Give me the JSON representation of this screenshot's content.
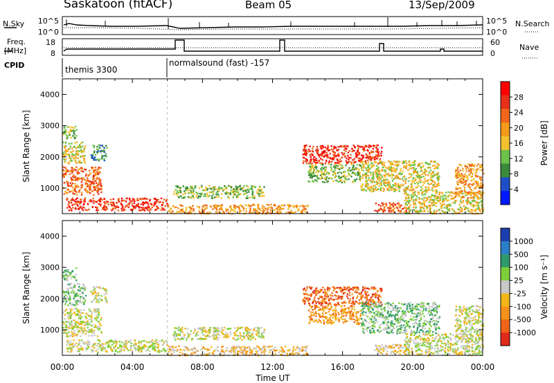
{
  "header": {
    "station": "Saskatoon (fitACF)",
    "beam": "Beam 05",
    "date": "13/Sep/2009"
  },
  "top_panel": {
    "left_label": "N.Sky",
    "right_label": "N.Search",
    "y_ticks_left": [
      "10^5",
      "10^0"
    ],
    "y_ticks_right": [
      "10^5",
      "10^0"
    ]
  },
  "freq_panel": {
    "left_label_1": "Freq.",
    "left_label_2": "[MHz]",
    "right_label": "Nave",
    "y_ticks_left": [
      "18",
      "8"
    ],
    "y_ticks_right": [
      "60",
      "0"
    ]
  },
  "cpid": {
    "label": "CPID",
    "segments": [
      {
        "name": "themis 3300",
        "start_hour": 0
      },
      {
        "name": "normalsound (fast) -157",
        "start_hour": 6
      }
    ]
  },
  "colors": {
    "power_scale": [
      "#0018ff",
      "#1f4fc8",
      "#3a8a3a",
      "#6cc24a",
      "#f2c12e",
      "#f59a1a",
      "#f0661a",
      "#e8301a",
      "#ff0000"
    ],
    "velocity_scale": [
      "#1c3fb0",
      "#2c7ec8",
      "#2f9a6a",
      "#7dcf3a",
      "#c8c8c8",
      "#f2b61a",
      "#f5921a",
      "#f0641a",
      "#e02a1a"
    ]
  },
  "chart_data": [
    {
      "type": "heatmap",
      "id": "power",
      "ylabel": "Slant Range [km]",
      "y_ticks": [
        1000,
        2000,
        3000,
        4000
      ],
      "ylim": [
        180,
        4500
      ],
      "xlim": [
        0,
        24
      ],
      "colorbar": {
        "label": "Power [dB]",
        "ticks": [
          "28",
          "24",
          "20",
          "16",
          "12",
          "8",
          "4"
        ]
      },
      "regions": [
        {
          "t0": 0.0,
          "t1": 2.2,
          "r0": 800,
          "r1": 1700,
          "level": 6
        },
        {
          "t0": 0.0,
          "t1": 1.3,
          "r0": 1800,
          "r1": 2500,
          "level": 4
        },
        {
          "t0": 0.0,
          "t1": 0.8,
          "r0": 2600,
          "r1": 3000,
          "level": 3
        },
        {
          "t0": 1.6,
          "t1": 2.5,
          "r0": 1900,
          "r1": 2400,
          "level": 2
        },
        {
          "t0": 0.2,
          "t1": 6.0,
          "r0": 300,
          "r1": 700,
          "level": 7
        },
        {
          "t0": 6.0,
          "t1": 14.0,
          "r0": 200,
          "r1": 500,
          "level": 5
        },
        {
          "t0": 6.3,
          "t1": 11.5,
          "r0": 700,
          "r1": 1100,
          "level": 3
        },
        {
          "t0": 13.7,
          "t1": 18.2,
          "r0": 1800,
          "r1": 2400,
          "level": 7
        },
        {
          "t0": 14.0,
          "t1": 17.0,
          "r0": 1200,
          "r1": 1800,
          "level": 3
        },
        {
          "t0": 17.0,
          "t1": 21.5,
          "r0": 900,
          "r1": 1900,
          "level": 4
        },
        {
          "t0": 17.8,
          "t1": 19.8,
          "r0": 250,
          "r1": 550,
          "level": 6
        },
        {
          "t0": 19.5,
          "t1": 24.0,
          "r0": 200,
          "r1": 900,
          "level": 4
        },
        {
          "t0": 22.4,
          "t1": 24.0,
          "r0": 700,
          "r1": 1800,
          "level": 5
        }
      ]
    },
    {
      "type": "heatmap",
      "id": "velocity",
      "ylabel": "Slant Range [km]",
      "y_ticks": [
        1000,
        2000,
        3000,
        4000
      ],
      "ylim": [
        180,
        4500
      ],
      "xlim": [
        0,
        24
      ],
      "x_ticks": [
        "00:00",
        "04:00",
        "08:00",
        "12:00",
        "16:00",
        "20:00",
        "00:00"
      ],
      "xlabel": "Time UT",
      "colorbar": {
        "label": "Velocity [m s⁻¹]",
        "ticks": [
          "1000",
          "500",
          "100",
          "25",
          "-25",
          "-100",
          "-500",
          "-1000"
        ]
      },
      "regions": [
        {
          "t0": 0.0,
          "t1": 2.2,
          "r0": 800,
          "r1": 1700,
          "level": 4
        },
        {
          "t0": 0.0,
          "t1": 1.3,
          "r0": 1800,
          "r1": 2500,
          "level": 3
        },
        {
          "t0": 0.0,
          "t1": 0.8,
          "r0": 2600,
          "r1": 3000,
          "level": 3
        },
        {
          "t0": 1.6,
          "t1": 2.5,
          "r0": 1900,
          "r1": 2400,
          "level": 4
        },
        {
          "t0": 0.2,
          "t1": 6.0,
          "r0": 300,
          "r1": 700,
          "level": 4
        },
        {
          "t0": 6.0,
          "t1": 14.0,
          "r0": 200,
          "r1": 500,
          "level": 5
        },
        {
          "t0": 6.3,
          "t1": 11.5,
          "r0": 700,
          "r1": 1100,
          "level": 4
        },
        {
          "t0": 13.7,
          "t1": 18.2,
          "r0": 1800,
          "r1": 2400,
          "level": 7
        },
        {
          "t0": 14.0,
          "t1": 17.0,
          "r0": 1200,
          "r1": 1800,
          "level": 6
        },
        {
          "t0": 17.0,
          "t1": 21.5,
          "r0": 900,
          "r1": 1900,
          "level": 3
        },
        {
          "t0": 17.8,
          "t1": 19.8,
          "r0": 250,
          "r1": 550,
          "level": 5
        },
        {
          "t0": 19.5,
          "t1": 24.0,
          "r0": 200,
          "r1": 900,
          "level": 4
        },
        {
          "t0": 22.4,
          "t1": 24.0,
          "r0": 700,
          "r1": 1800,
          "level": 4
        }
      ]
    }
  ]
}
